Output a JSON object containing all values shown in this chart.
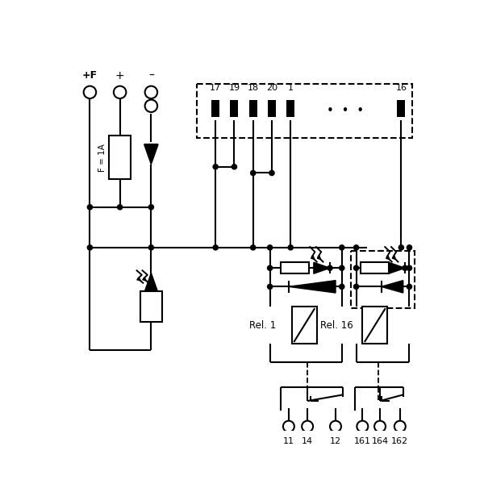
{
  "bg": "#ffffff",
  "lc": "#000000",
  "lw": 1.5,
  "pin_labels": [
    "17",
    "19",
    "18",
    "20",
    "1",
    "16"
  ],
  "out1_labels": [
    "11",
    "14",
    "12"
  ],
  "out16_labels": [
    "161",
    "164",
    "162"
  ],
  "relay1_label": "Rel. 1",
  "relay16_label": "Rel. 16",
  "fuse_label": "F = 1A"
}
